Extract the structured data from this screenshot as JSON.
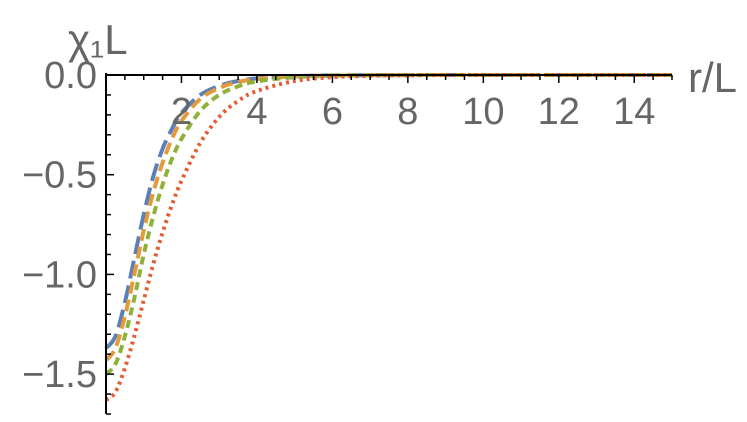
{
  "chart_data": {
    "type": "line",
    "xlabel": "r/L",
    "ylabel": "χ₁L",
    "xlim": [
      0,
      15
    ],
    "ylim": [
      -1.7,
      0
    ],
    "x_ticks": [
      2,
      4,
      6,
      8,
      10,
      12,
      14
    ],
    "x_tick_labels": [
      "2",
      "4",
      "6",
      "8",
      "10",
      "12",
      "14"
    ],
    "y_ticks": [
      0,
      -0.5,
      -1.0,
      -1.5
    ],
    "y_tick_labels": [
      "0.0",
      "−0.5",
      "−1.0",
      "−1.5"
    ],
    "grid": false,
    "legend": "none",
    "series": [
      {
        "color": "#5b7fb8",
        "dash": "long-dash",
        "x": [
          0,
          0.25,
          0.5,
          0.75,
          1.0,
          1.25,
          1.5,
          1.75,
          2.0,
          2.5,
          3.0,
          3.5,
          4.0,
          5.0,
          6.0,
          7.0,
          8.0,
          10.0,
          12.0,
          15.0
        ],
        "y": [
          -1.37,
          -1.31,
          -1.14,
          -0.92,
          -0.7,
          -0.51,
          -0.37,
          -0.27,
          -0.19,
          -0.1,
          -0.055,
          -0.03,
          -0.017,
          -0.006,
          -0.002,
          -0.0008,
          -0.0003,
          0,
          0,
          0
        ]
      },
      {
        "color": "#e39a3a",
        "dash": "dash",
        "x": [
          0,
          0.25,
          0.5,
          0.75,
          1.0,
          1.25,
          1.5,
          1.75,
          2.0,
          2.5,
          3.0,
          3.5,
          4.0,
          5.0,
          6.0,
          7.0,
          8.0,
          10.0,
          12.0,
          15.0
        ],
        "y": [
          -1.43,
          -1.37,
          -1.21,
          -1.0,
          -0.78,
          -0.59,
          -0.44,
          -0.32,
          -0.23,
          -0.12,
          -0.065,
          -0.035,
          -0.02,
          -0.007,
          -0.0025,
          -0.001,
          -0.0004,
          0,
          0,
          0
        ]
      },
      {
        "color": "#8fb13c",
        "dash": "short-dash",
        "x": [
          0,
          0.25,
          0.5,
          0.75,
          1.0,
          1.25,
          1.5,
          1.75,
          2.0,
          2.5,
          3.0,
          3.5,
          4.0,
          5.0,
          6.0,
          7.0,
          8.0,
          10.0,
          12.0,
          15.0
        ],
        "y": [
          -1.5,
          -1.45,
          -1.31,
          -1.12,
          -0.9,
          -0.71,
          -0.55,
          -0.42,
          -0.32,
          -0.18,
          -0.1,
          -0.057,
          -0.032,
          -0.011,
          -0.004,
          -0.0015,
          -0.0005,
          0,
          0,
          0
        ]
      },
      {
        "color": "#e05f34",
        "dash": "dot",
        "x": [
          0,
          0.25,
          0.5,
          0.75,
          1.0,
          1.25,
          1.5,
          1.75,
          2.0,
          2.5,
          3.0,
          3.5,
          4.0,
          5.0,
          6.0,
          7.0,
          8.0,
          10.0,
          12.0,
          15.0
        ],
        "y": [
          -1.63,
          -1.59,
          -1.47,
          -1.31,
          -1.13,
          -0.95,
          -0.79,
          -0.65,
          -0.53,
          -0.34,
          -0.21,
          -0.13,
          -0.08,
          -0.03,
          -0.011,
          -0.004,
          -0.0015,
          0,
          0,
          0
        ]
      }
    ]
  }
}
